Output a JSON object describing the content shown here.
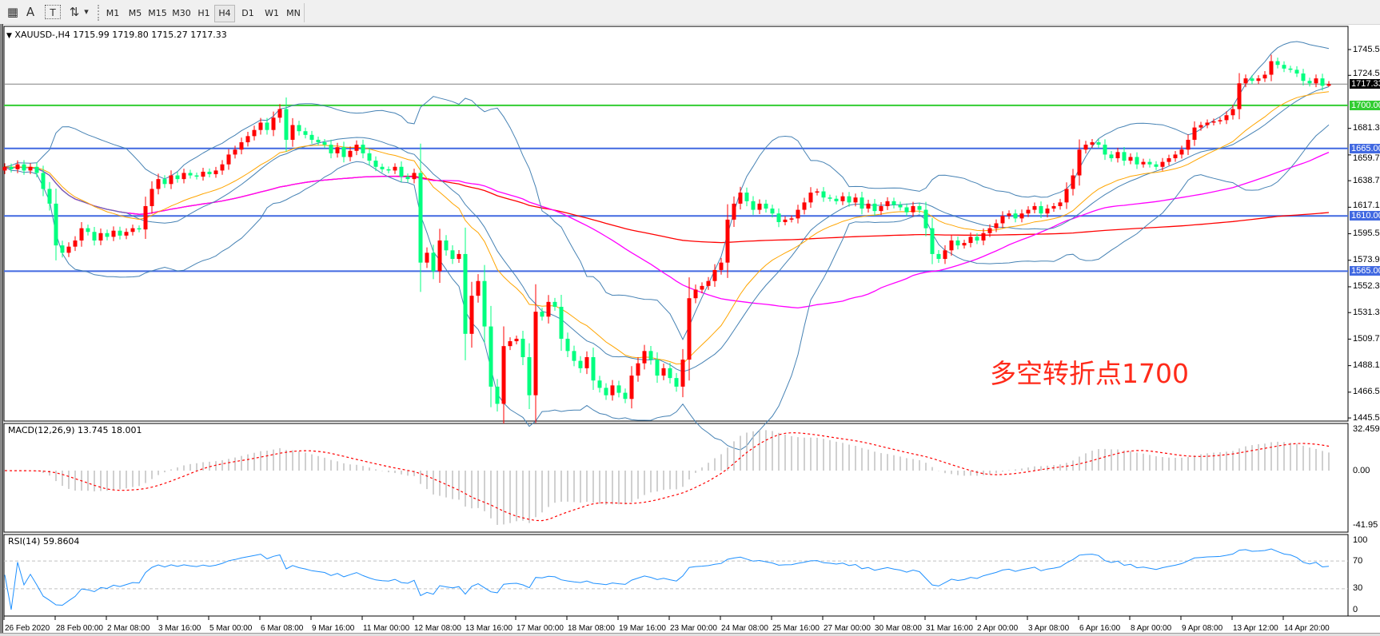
{
  "toolbar": {
    "tools": [
      {
        "name": "grid-icon",
        "glyph": "▦"
      },
      {
        "name": "text-icon",
        "glyph": "A"
      },
      {
        "name": "text-label-icon",
        "glyph": "T"
      },
      {
        "name": "arrows-icon",
        "glyph": "⇅"
      },
      {
        "name": "dropdown-icon",
        "glyph": "▾"
      }
    ],
    "timeframes": [
      "M1",
      "M5",
      "M15",
      "M30",
      "H1",
      "H4",
      "D1",
      "W1",
      "MN"
    ],
    "active_timeframe": "H4"
  },
  "chart_data": {
    "type": "candlestick",
    "header": {
      "arrow": "▼",
      "symbol": "XAUUSD-,H4",
      "ohlc": "1715.99 1719.80 1715.27 1717.33"
    },
    "close": [
      1650,
      1648,
      1652,
      1647,
      1650,
      1645,
      1632,
      1620,
      1586,
      1580,
      1585,
      1590,
      1600,
      1597,
      1590,
      1596,
      1593,
      1598,
      1594,
      1597,
      1600,
      1599,
      1618,
      1632,
      1640,
      1636,
      1643,
      1640,
      1645,
      1643,
      1642,
      1646,
      1644,
      1647,
      1652,
      1660,
      1664,
      1670,
      1675,
      1680,
      1686,
      1680,
      1690,
      1697,
      1672,
      1684,
      1679,
      1676,
      1672,
      1670,
      1668,
      1661,
      1666,
      1658,
      1663,
      1668,
      1661,
      1655,
      1650,
      1648,
      1647,
      1650,
      1642,
      1640,
      1645,
      1572,
      1580,
      1565,
      1590,
      1582,
      1575,
      1579,
      1514,
      1545,
      1557,
      1520,
      1471,
      1457,
      1504,
      1508,
      1510,
      1495,
      1464,
      1532,
      1528,
      1540,
      1536,
      1510,
      1500,
      1492,
      1486,
      1495,
      1476,
      1470,
      1464,
      1472,
      1466,
      1461,
      1480,
      1490,
      1500,
      1493,
      1480,
      1486,
      1478,
      1471,
      1493,
      1543,
      1550,
      1553,
      1557,
      1566,
      1572,
      1607,
      1620,
      1629,
      1622,
      1615,
      1620,
      1616,
      1612,
      1605,
      1607,
      1608,
      1615,
      1621,
      1629,
      1630,
      1625,
      1624,
      1622,
      1626,
      1621,
      1625,
      1616,
      1620,
      1614,
      1618,
      1622,
      1619,
      1617,
      1613,
      1618,
      1615,
      1600,
      1579,
      1575,
      1582,
      1590,
      1586,
      1588,
      1593,
      1590,
      1596,
      1600,
      1604,
      1610,
      1612,
      1608,
      1612,
      1615,
      1618,
      1612,
      1616,
      1618,
      1621,
      1632,
      1643,
      1664,
      1668,
      1670,
      1668,
      1660,
      1657,
      1662,
      1655,
      1658,
      1652,
      1654,
      1652,
      1650,
      1654,
      1657,
      1660,
      1664,
      1672,
      1682,
      1684,
      1686,
      1687,
      1688,
      1692,
      1697,
      1718,
      1722,
      1720,
      1722,
      1725,
      1736,
      1733,
      1730,
      1729,
      1726,
      1720,
      1718,
      1722,
      1715.99,
      1717.33
    ],
    "last_bar": {
      "open": 1715.99,
      "high": 1719.8,
      "low": 1715.27,
      "close": 1717.33
    },
    "ylim": [
      1443,
      1764
    ],
    "price_ticks": [
      {
        "value": 1745.5,
        "label": "1745.50"
      },
      {
        "value": 1724.5,
        "label": "1724.50"
      },
      {
        "value": 1681.3,
        "label": "1681.30"
      },
      {
        "value": 1659.7,
        "label": "1659.70"
      },
      {
        "value": 1638.7,
        "label": "1638.70"
      },
      {
        "value": 1617.1,
        "label": "1617.10"
      },
      {
        "value": 1595.5,
        "label": "1595.50"
      },
      {
        "value": 1573.9,
        "label": "1573.90"
      },
      {
        "value": 1552.3,
        "label": "1552.30"
      },
      {
        "value": 1531.3,
        "label": "1531.30"
      },
      {
        "value": 1509.7,
        "label": "1509.70"
      },
      {
        "value": 1488.1,
        "label": "1488.10"
      },
      {
        "value": 1466.5,
        "label": "1466.50"
      },
      {
        "value": 1445.5,
        "label": "1445.50"
      }
    ],
    "time_labels": [
      "26 Feb 2020",
      "28 Feb 00:00",
      "2 Mar 08:00",
      "3 Mar 16:00",
      "5 Mar 00:00",
      "6 Mar 08:00",
      "9 Mar 16:00",
      "11 Mar 00:00",
      "12 Mar 08:00",
      "13 Mar 16:00",
      "17 Mar 00:00",
      "18 Mar 08:00",
      "19 Mar 16:00",
      "23 Mar 00:00",
      "24 Mar 08:00",
      "25 Mar 16:00",
      "27 Mar 00:00",
      "30 Mar 08:00",
      "31 Mar 16:00",
      "2 Apr 00:00",
      "3 Apr 08:00",
      "6 Apr 16:00",
      "8 Apr 00:00",
      "9 Apr 08:00",
      "13 Apr 12:00",
      "14 Apr 20:00"
    ],
    "hlines": [
      {
        "value": 1700,
        "label": "1700.00",
        "color": "#32cd32"
      },
      {
        "value": 1665,
        "label": "1665.00",
        "color": "#4169e1"
      },
      {
        "value": 1610,
        "label": "1610.00",
        "color": "#4169e1"
      },
      {
        "value": 1565,
        "label": "1565.00",
        "color": "#4169e1"
      }
    ],
    "current_price": {
      "value": 1717.33,
      "label": "1717.33"
    },
    "annotation": "多空转折点1700",
    "colors": {
      "up": "#ff0000",
      "down": "#00ff7f",
      "bollinger": "#4682b4",
      "ma_fast": "#ffa500",
      "ma_mid": "#ff00ff",
      "ma_slow": "#ff0000",
      "macd_hist": "#c0c0c0",
      "macd_signal": "#ff0000",
      "rsi": "#1e90ff",
      "level": "#c0c0c0",
      "current_price": "#808080"
    },
    "macd": {
      "label": "MACD(12,26,9) 13.745 18.001",
      "ylim": [
        -41.95,
        32.459
      ],
      "ticks": [
        {
          "value": 32.459,
          "label": "32.459"
        },
        {
          "value": 0,
          "label": "0.00"
        },
        {
          "value": -41.95,
          "label": "-41.95"
        }
      ]
    },
    "rsi": {
      "label": "RSI(14) 59.8604",
      "ylim": [
        0,
        100
      ],
      "levels": [
        70,
        30
      ],
      "ticks": [
        {
          "value": 100,
          "label": "100"
        },
        {
          "value": 70,
          "label": "70"
        },
        {
          "value": 30,
          "label": "30"
        },
        {
          "value": 0,
          "label": "0"
        }
      ]
    }
  }
}
